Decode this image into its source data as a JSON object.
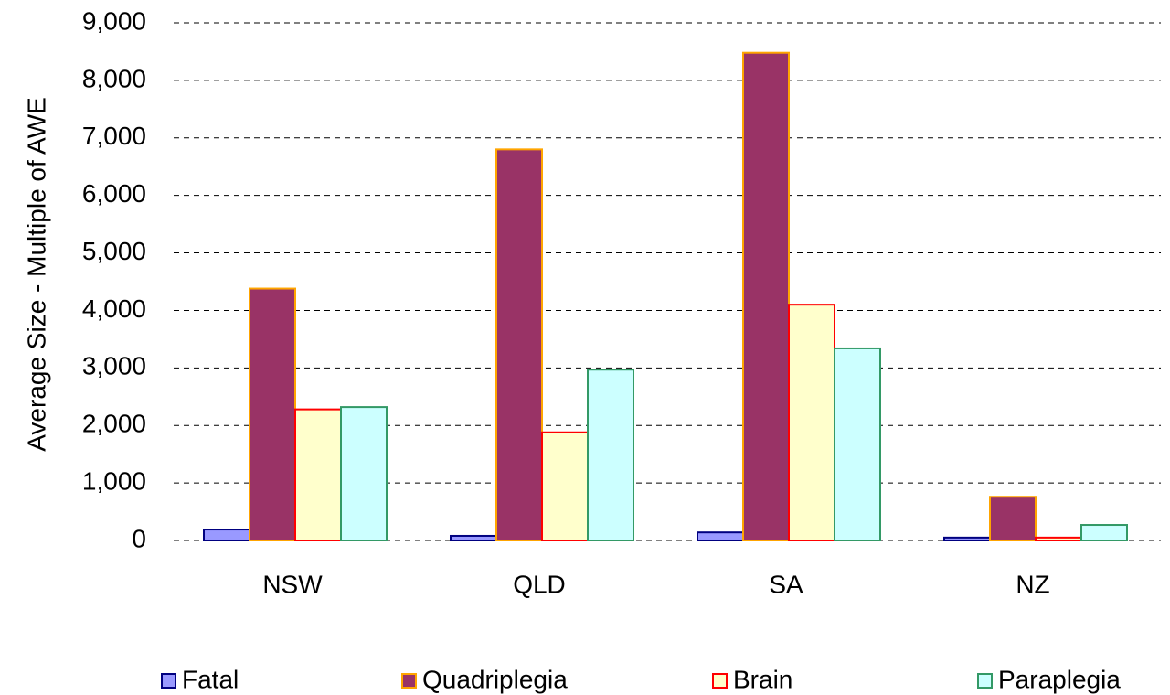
{
  "chart_data": {
    "type": "bar",
    "y_label": "Average Size - Multiple of AWE",
    "categories": [
      "NSW",
      "QLD",
      "SA",
      "NZ"
    ],
    "series": [
      {
        "name": "Fatal",
        "color": "#9999ff",
        "edgecolor": "#000080",
        "values": [
          190,
          80,
          140,
          50
        ]
      },
      {
        "name": "Quadriplegia",
        "color": "#993366",
        "edgecolor": "#ffa500",
        "values": [
          4380,
          6800,
          8480,
          760
        ]
      },
      {
        "name": "Brain",
        "color": "#ffffcc",
        "edgecolor": "#ff0000",
        "values": [
          2280,
          1880,
          4100,
          50
        ]
      },
      {
        "name": "Paraplegia",
        "color": "#ccffff",
        "edgecolor": "#339966",
        "values": [
          2320,
          2970,
          3340,
          270
        ]
      }
    ],
    "ylim": [
      0,
      9000
    ],
    "yticks": [
      0,
      {
        "value": 1000,
        "label": "1,000"
      },
      {
        "value": 2000,
        "label": "2,000"
      },
      {
        "value": 3000,
        "label": "3,000"
      },
      {
        "value": 4000,
        "label": "4,000"
      },
      {
        "value": 5000,
        "label": "5,000"
      },
      {
        "value": 6000,
        "label": "6,000"
      },
      {
        "value": 7000,
        "label": "7,000"
      },
      {
        "value": 8000,
        "label": "8,000"
      },
      {
        "value": 9000,
        "label": "9,000"
      }
    ],
    "grid": true,
    "legend": "bottom"
  }
}
